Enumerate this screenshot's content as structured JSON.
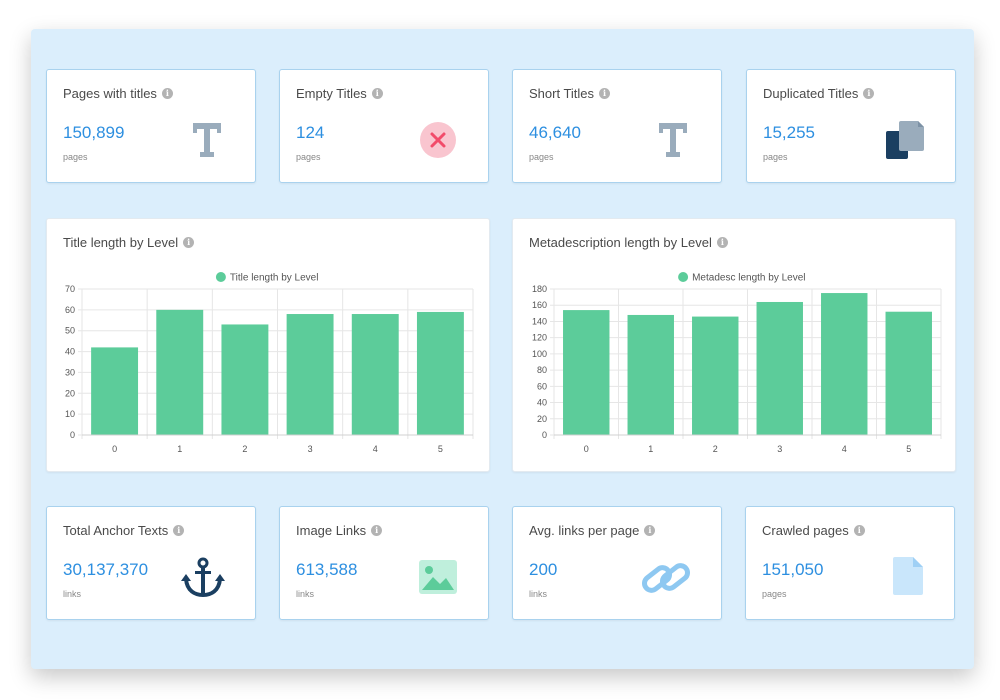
{
  "colors": {
    "accent": "#2d8fe0",
    "bar": "#5ccc9a",
    "danger": "#f24b6a"
  },
  "stats_top": [
    {
      "title": "Pages with titles",
      "value": "150,899",
      "unit": "pages",
      "icon": "title-t-icon"
    },
    {
      "title": "Empty Titles",
      "value": "124",
      "unit": "pages",
      "icon": "error-x-icon"
    },
    {
      "title": "Short Titles",
      "value": "46,640",
      "unit": "pages",
      "icon": "title-t-icon"
    },
    {
      "title": "Duplicated Titles",
      "value": "15,255",
      "unit": "pages",
      "icon": "duplicate-icon"
    }
  ],
  "stats_bottom": [
    {
      "title": "Total Anchor Texts",
      "value": "30,137,370",
      "unit": "links",
      "icon": "anchor-icon"
    },
    {
      "title": "Image Links",
      "value": "613,588",
      "unit": "links",
      "icon": "image-icon"
    },
    {
      "title": "Avg. links per page",
      "value": "200",
      "unit": "links",
      "icon": "link-icon"
    },
    {
      "title": "Crawled pages",
      "value": "151,050",
      "unit": "pages",
      "icon": "file-icon"
    }
  ],
  "chart_data": [
    {
      "type": "bar",
      "title": "Title length by Level",
      "legend": "Title length by Level",
      "categories": [
        "0",
        "1",
        "2",
        "3",
        "4",
        "5"
      ],
      "values": [
        42,
        60,
        53,
        58,
        58,
        59
      ],
      "ylim": [
        0,
        70
      ],
      "yticks": [
        0,
        10,
        20,
        30,
        40,
        50,
        60,
        70
      ],
      "grid": true,
      "legend_position": "top-center"
    },
    {
      "type": "bar",
      "title": "Metadescription length by Level",
      "legend": "Metadesc length by Level",
      "categories": [
        "0",
        "1",
        "2",
        "3",
        "4",
        "5"
      ],
      "values": [
        154,
        148,
        146,
        164,
        175,
        152
      ],
      "ylim": [
        0,
        180
      ],
      "yticks": [
        0,
        20,
        40,
        60,
        80,
        100,
        120,
        140,
        160,
        180
      ],
      "grid": true,
      "legend_position": "top-center"
    }
  ]
}
